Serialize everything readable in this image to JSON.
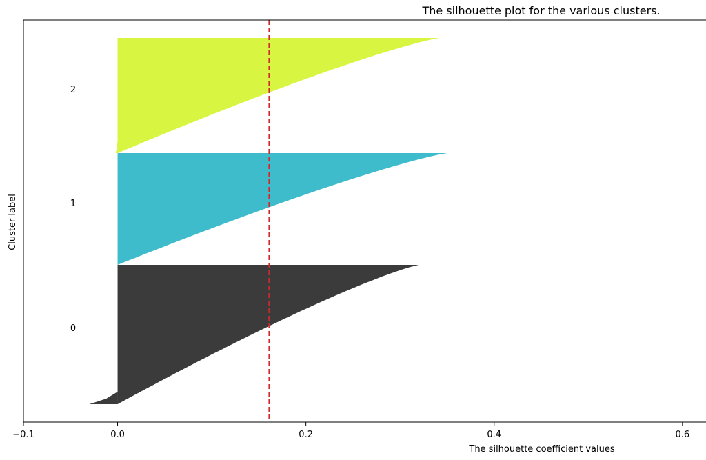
{
  "chart_data": {
    "type": "area",
    "title": "The silhouette plot for the various clusters.",
    "xlabel": "The silhouette coefficient values",
    "ylabel": "Cluster label",
    "xlim": [
      -0.1,
      0.625
    ],
    "x_ticks": [
      -0.1,
      0.0,
      0.2,
      0.4,
      0.6
    ],
    "x_tick_labels": [
      "−0.1",
      "0.0",
      "0.2",
      "0.4",
      "0.6"
    ],
    "average_silhouette_score": 0.161,
    "average_line_color": "#d62728",
    "grid": false,
    "clusters": [
      {
        "label": "0",
        "color": "#3b3b3b",
        "min_value": -0.03,
        "max_value": 0.32
      },
      {
        "label": "1",
        "color": "#3fbccc",
        "min_value": 0.0,
        "max_value": 0.35
      },
      {
        "label": "2",
        "color": "#d7f541",
        "min_value": -0.002,
        "max_value": 0.342
      }
    ]
  }
}
